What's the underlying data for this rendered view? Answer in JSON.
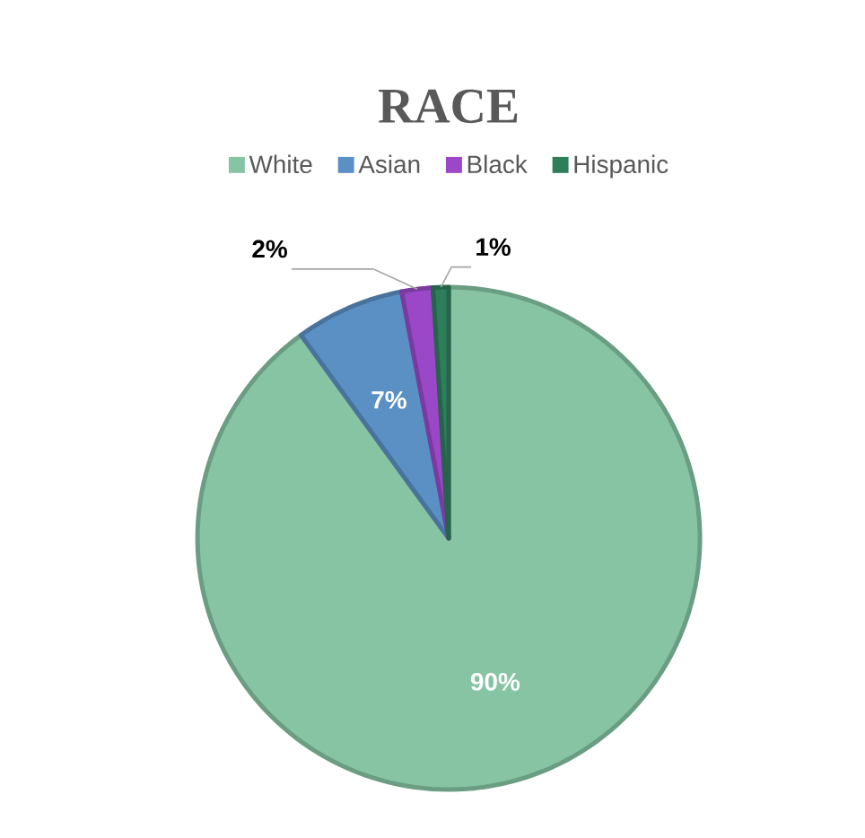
{
  "chart_data": {
    "type": "pie",
    "title": "RACE",
    "categories": [
      "White",
      "Asian",
      "Black",
      "Hispanic"
    ],
    "values": [
      90,
      7,
      2,
      1
    ],
    "colors": [
      "#86c4a4",
      "#5b90c4",
      "#9a48c8",
      "#2e7d5b"
    ],
    "value_labels": [
      "90%",
      "7%",
      "2%",
      "1%"
    ],
    "legend": "top"
  }
}
